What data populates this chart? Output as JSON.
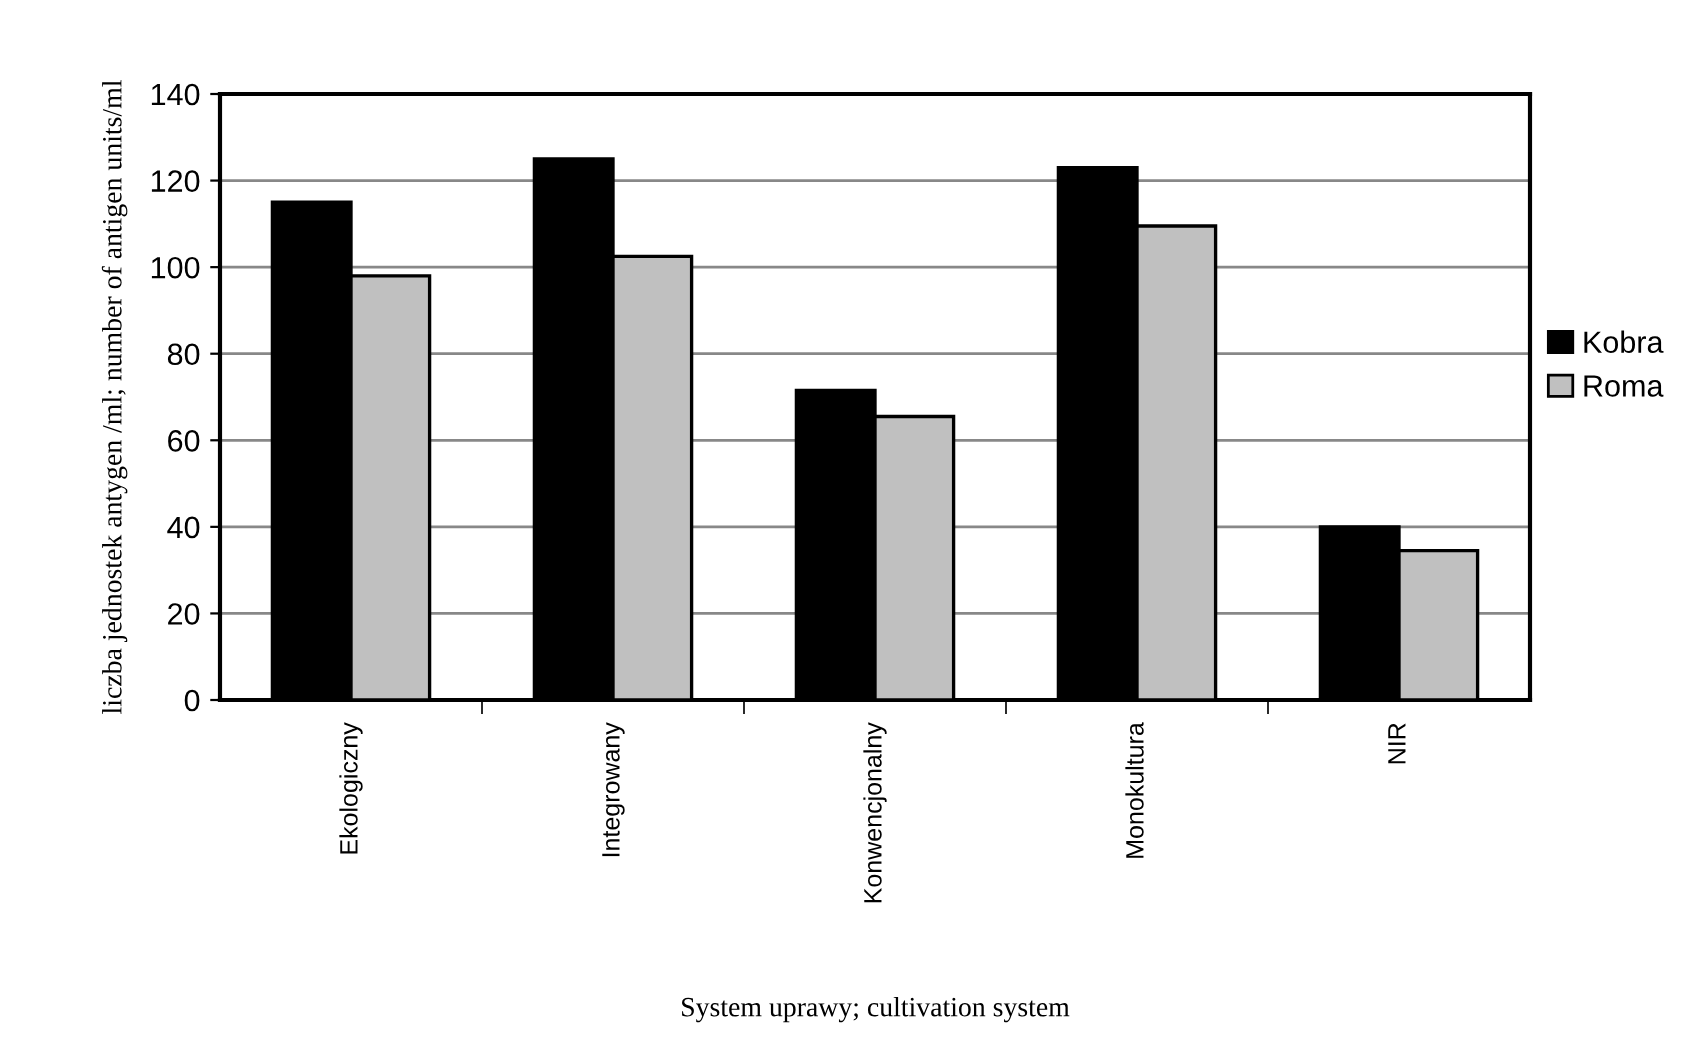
{
  "chart_data": {
    "type": "bar",
    "xlabel": "System uprawy; cultivation system",
    "ylabel": "liczba jednostek antygen /ml; number of antigen units/ml",
    "categories": [
      "Ekologiczny",
      "Integrowany",
      "Konwencjonalny",
      "Monokultura",
      "NIR"
    ],
    "series": [
      {
        "name": "Kobra",
        "color": "#000000",
        "values": [
          115,
          125,
          71.5,
          123,
          40
        ]
      },
      {
        "name": "Roma",
        "color": "#c0c0c0",
        "values": [
          98,
          102.5,
          65.5,
          109.5,
          34.5
        ]
      }
    ],
    "ylim": [
      0,
      140
    ],
    "yticks": [
      0,
      20,
      40,
      60,
      80,
      100,
      120,
      140
    ],
    "grid": "y",
    "legend": "right"
  }
}
